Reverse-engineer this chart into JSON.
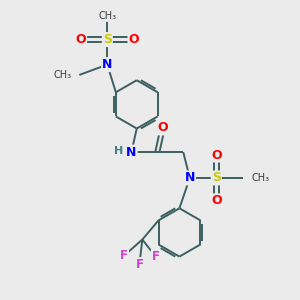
{
  "bg_color": "#ebebeb",
  "atom_colors": {
    "C": "#3c3c3c",
    "N": "#0000ff",
    "O": "#ff0000",
    "S": "#cccc00",
    "F": "#cc44cc",
    "H": "#408080"
  },
  "bond_color": "#3c6060",
  "bond_lw": 1.4,
  "figsize": [
    3.0,
    3.0
  ],
  "dpi": 100,
  "xlim": [
    0,
    10
  ],
  "ylim": [
    0,
    10
  ]
}
